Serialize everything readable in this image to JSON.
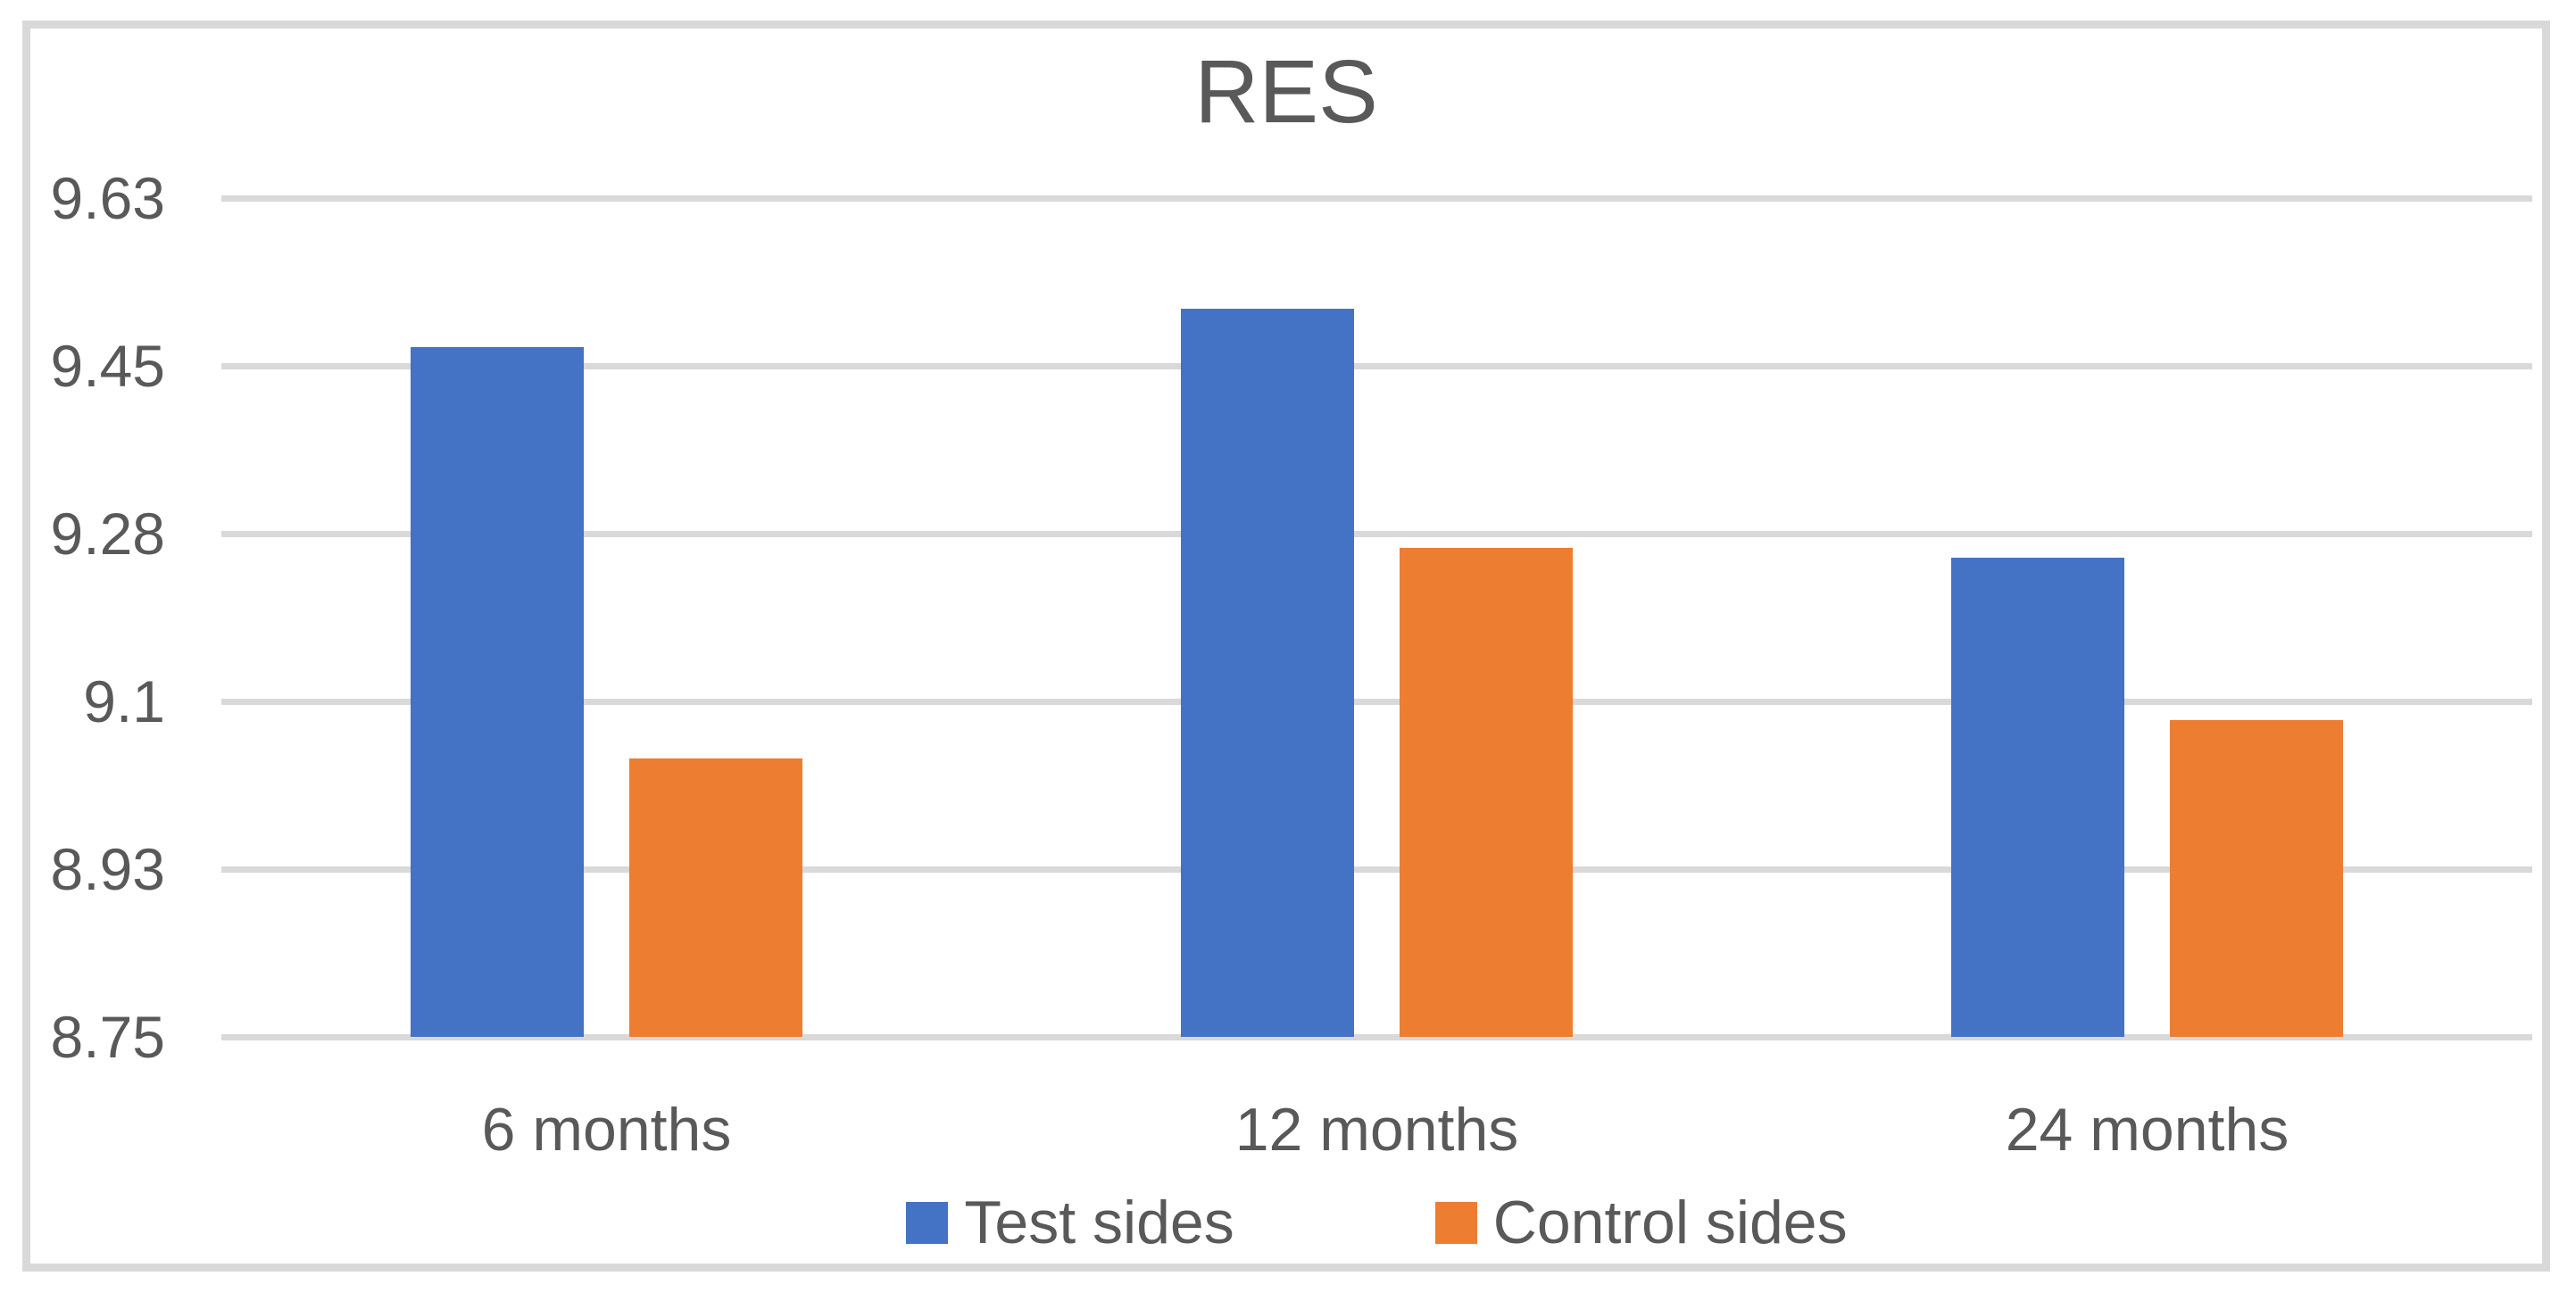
{
  "chart_data": {
    "type": "bar",
    "title": "RES",
    "categories": [
      "6 months",
      "12 months",
      "24 months"
    ],
    "series": [
      {
        "name": "Test sides",
        "color": "#4472C4",
        "values": [
          9.47,
          9.51,
          9.25
        ]
      },
      {
        "name": "Control sides",
        "color": "#ED7D31",
        "values": [
          9.04,
          9.26,
          9.08
        ]
      }
    ],
    "ylim": [
      8.75,
      9.625
    ],
    "yticks": [
      {
        "value": 9.625,
        "label": "9.63"
      },
      {
        "value": 9.45,
        "label": "9.45"
      },
      {
        "value": 9.275,
        "label": "9.28"
      },
      {
        "value": 9.1,
        "label": "9.1"
      },
      {
        "value": 8.925,
        "label": "8.93"
      },
      {
        "value": 8.75,
        "label": "8.75"
      }
    ],
    "xlabel": "",
    "ylabel": "",
    "grid": "horizontal",
    "legend_position": "bottom",
    "colors": {
      "text": "#595959",
      "gridline": "#D9D9D9",
      "frame_border": "#D9D9D9",
      "background": "#FFFFFF"
    }
  }
}
